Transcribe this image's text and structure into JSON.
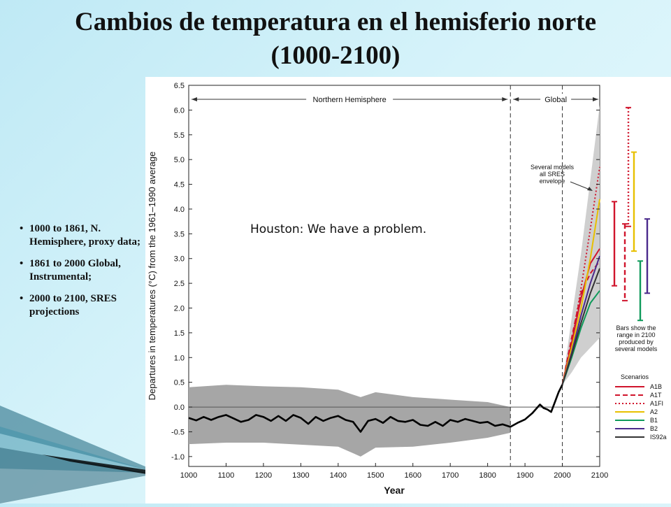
{
  "slide": {
    "title_line1": "Cambios de temperatura en el hemisferio norte",
    "title_line2": "(1000-2100)",
    "bullets": [
      "1000 to 1861, N. Hemisphere, proxy data;",
      "1861 to 2000 Global, Instrumental;",
      "2000 to 2100, SRES projections"
    ],
    "callout": "Houston: We have a problem."
  },
  "chart_data": {
    "type": "line",
    "xlabel": "Year",
    "ylabel": "Departures in temperatures (°C) from the 1961–1990 average",
    "xlim": [
      1000,
      2100
    ],
    "ylim": [
      -1.2,
      6.5
    ],
    "x_ticks": [
      "1000",
      "1100",
      "1200",
      "1300",
      "1400",
      "1500",
      "1600",
      "1700",
      "1800",
      "1900",
      "2000",
      "2100"
    ],
    "y_ticks": [
      "6.5",
      "6.0",
      "5.5",
      "5.0",
      "4.5",
      "4.0",
      "3.5",
      "3.0",
      "2.5",
      "2.0",
      "1.5",
      "1.0",
      "0.5",
      "0.0",
      "-0.5",
      "-1.0"
    ],
    "region_labels": [
      "Northern Hemisphere",
      "Global"
    ],
    "region_boundary_years": [
      1861,
      2000
    ],
    "envelope_label": "Several models all SRES envelope",
    "bars_note": "Bars show the range in 2100 produced by several models",
    "scenarios_title": "Scenarios",
    "history": {
      "x": [
        1000,
        1020,
        1040,
        1060,
        1080,
        1100,
        1120,
        1140,
        1160,
        1180,
        1200,
        1220,
        1240,
        1260,
        1280,
        1300,
        1320,
        1340,
        1360,
        1380,
        1400,
        1420,
        1440,
        1460,
        1480,
        1500,
        1520,
        1540,
        1560,
        1580,
        1600,
        1620,
        1640,
        1660,
        1680,
        1700,
        1720,
        1740,
        1760,
        1780,
        1800,
        1820,
        1840,
        1861,
        1880,
        1900,
        1920,
        1940,
        1950,
        1960,
        1970,
        1980,
        1990,
        2000
      ],
      "y": [
        -0.22,
        -0.27,
        -0.2,
        -0.26,
        -0.2,
        -0.16,
        -0.23,
        -0.3,
        -0.26,
        -0.16,
        -0.2,
        -0.28,
        -0.18,
        -0.28,
        -0.16,
        -0.22,
        -0.34,
        -0.2,
        -0.28,
        -0.22,
        -0.18,
        -0.26,
        -0.3,
        -0.5,
        -0.28,
        -0.24,
        -0.32,
        -0.2,
        -0.28,
        -0.3,
        -0.26,
        -0.36,
        -0.38,
        -0.3,
        -0.38,
        -0.26,
        -0.3,
        -0.24,
        -0.28,
        -0.32,
        -0.3,
        -0.38,
        -0.35,
        -0.4,
        -0.32,
        -0.25,
        -0.12,
        0.05,
        -0.02,
        -0.05,
        -0.1,
        0.1,
        0.3,
        0.45
      ]
    },
    "history_envelope": {
      "x": [
        1000,
        1100,
        1200,
        1300,
        1400,
        1460,
        1500,
        1600,
        1700,
        1800,
        1861
      ],
      "lower": [
        -0.75,
        -0.72,
        -0.72,
        -0.76,
        -0.8,
        -1.0,
        -0.82,
        -0.8,
        -0.72,
        -0.62,
        -0.52
      ],
      "upper": [
        0.4,
        0.45,
        0.42,
        0.4,
        0.35,
        0.2,
        0.3,
        0.2,
        0.15,
        0.1,
        0.0
      ]
    },
    "projection_envelope": {
      "x": [
        2000,
        2025,
        2050,
        2075,
        2100
      ],
      "lower": [
        0.45,
        0.7,
        1.0,
        1.2,
        1.4
      ],
      "upper": [
        0.45,
        1.8,
        3.1,
        4.6,
        6.1
      ]
    },
    "series": [
      {
        "name": "A1B",
        "color": "#d0142c",
        "dash": "solid",
        "x": [
          2000,
          2025,
          2050,
          2075,
          2100
        ],
        "y": [
          0.45,
          1.3,
          2.2,
          2.9,
          3.2
        ]
      },
      {
        "name": "A1T",
        "color": "#d0142c",
        "dash": "dashed",
        "x": [
          2000,
          2025,
          2050,
          2075,
          2100
        ],
        "y": [
          0.45,
          1.4,
          2.3,
          2.7,
          2.95
        ]
      },
      {
        "name": "A1FI",
        "color": "#d0142c",
        "dash": "dotted",
        "x": [
          2000,
          2025,
          2050,
          2075,
          2100
        ],
        "y": [
          0.45,
          1.3,
          2.4,
          3.6,
          4.85
        ]
      },
      {
        "name": "A2",
        "color": "#e8c000",
        "dash": "solid",
        "x": [
          2000,
          2025,
          2050,
          2075,
          2100
        ],
        "y": [
          0.45,
          1.2,
          2.0,
          3.0,
          4.2
        ]
      },
      {
        "name": "B1",
        "color": "#0e9a5a",
        "dash": "solid",
        "x": [
          2000,
          2025,
          2050,
          2075,
          2100
        ],
        "y": [
          0.45,
          1.0,
          1.6,
          2.1,
          2.35
        ]
      },
      {
        "name": "B2",
        "color": "#4b2a8c",
        "dash": "solid",
        "x": [
          2000,
          2025,
          2050,
          2075,
          2100
        ],
        "y": [
          0.45,
          1.1,
          1.85,
          2.5,
          3.05
        ]
      },
      {
        "name": "IS92a",
        "color": "#333333",
        "dash": "solid",
        "x": [
          2000,
          2025,
          2050,
          2075,
          2100
        ],
        "y": [
          0.45,
          1.05,
          1.7,
          2.3,
          2.8
        ]
      }
    ],
    "ranges_2100": [
      {
        "name": "A1B",
        "color": "#d0142c",
        "dash": "solid",
        "low": 2.45,
        "high": 4.15
      },
      {
        "name": "A1T",
        "color": "#d0142c",
        "dash": "dashed",
        "low": 2.15,
        "high": 3.7
      },
      {
        "name": "A1FI",
        "color": "#d0142c",
        "dash": "dotted",
        "low": 3.65,
        "high": 6.05
      },
      {
        "name": "A2",
        "color": "#e8c000",
        "dash": "solid",
        "low": 3.15,
        "high": 5.15
      },
      {
        "name": "B1",
        "color": "#0e9a5a",
        "dash": "solid",
        "low": 1.75,
        "high": 2.95
      },
      {
        "name": "B2",
        "color": "#4b2a8c",
        "dash": "solid",
        "low": 2.3,
        "high": 3.8
      }
    ]
  }
}
